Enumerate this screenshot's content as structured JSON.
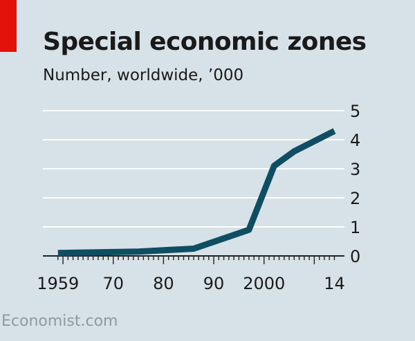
{
  "header": {
    "title": "Special economic zones",
    "subtitle": "Number, worldwide, ’000"
  },
  "source": "Economist.com",
  "colors": {
    "background": "#d6e2e8",
    "accent": "#e3120b",
    "line": "#0f4d62",
    "gridline": "#ffffff",
    "text": "#1a1a1a",
    "source_text": "#8f9aa0"
  },
  "chart_data": {
    "type": "line",
    "title": "Special economic zones",
    "subtitle": "Number, worldwide, ’000",
    "xlabel": "",
    "ylabel": "",
    "x_tick_labels": [
      {
        "x": 1959,
        "label": "1959"
      },
      {
        "x": 1970,
        "label": "70"
      },
      {
        "x": 1980,
        "label": "80"
      },
      {
        "x": 1990,
        "label": "90"
      },
      {
        "x": 2000,
        "label": "2000"
      },
      {
        "x": 2014,
        "label": "14"
      }
    ],
    "y_tick_labels": [
      "0",
      "1",
      "2",
      "3",
      "4",
      "5"
    ],
    "xlim": [
      1956,
      2016
    ],
    "ylim": [
      0,
      5
    ],
    "y_axis_side": "right",
    "grid": true,
    "series": [
      {
        "points": [
          {
            "x": 1959,
            "y": 0.1
          },
          {
            "x": 1975,
            "y": 0.15
          },
          {
            "x": 1986,
            "y": 0.25
          },
          {
            "x": 1997,
            "y": 0.9
          },
          {
            "x": 2002,
            "y": 3.1
          },
          {
            "x": 2006,
            "y": 3.6
          },
          {
            "x": 2014,
            "y": 4.3
          }
        ]
      }
    ]
  }
}
